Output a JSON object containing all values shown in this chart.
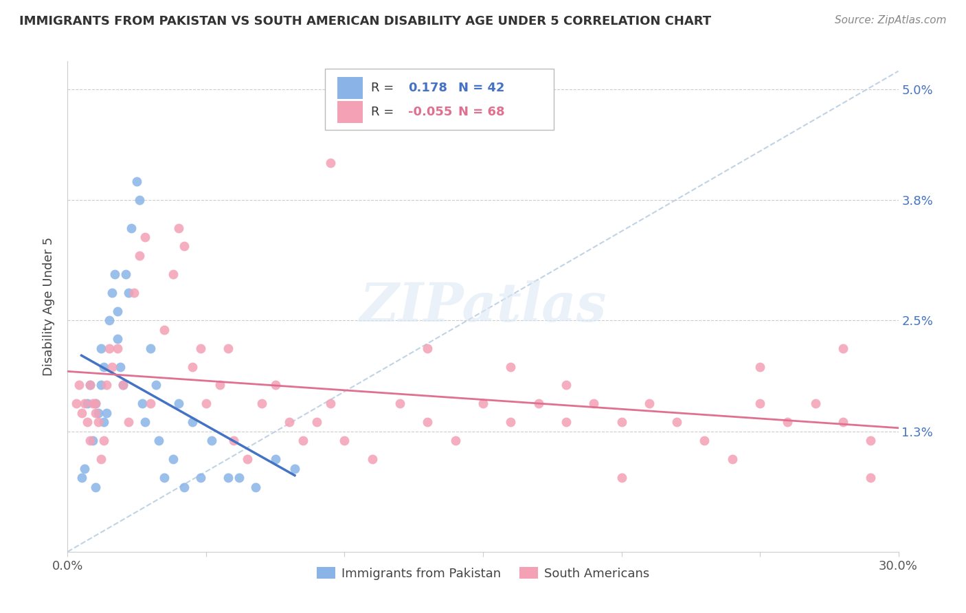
{
  "title": "IMMIGRANTS FROM PAKISTAN VS SOUTH AMERICAN DISABILITY AGE UNDER 5 CORRELATION CHART",
  "source": "Source: ZipAtlas.com",
  "ylabel": "Disability Age Under 5",
  "xlim": [
    0.0,
    0.3
  ],
  "ylim": [
    0.0,
    0.053
  ],
  "yticks": [
    0.013,
    0.025,
    0.038,
    0.05
  ],
  "ytick_labels": [
    "1.3%",
    "2.5%",
    "3.8%",
    "5.0%"
  ],
  "xticks": [
    0.0,
    0.05,
    0.1,
    0.15,
    0.2,
    0.25,
    0.3
  ],
  "pakistan_color": "#8ab4e8",
  "southam_color": "#f4a0b5",
  "pakistan_trend_color": "#4472c4",
  "southam_trend_color": "#e07090",
  "diag_line_color": "#b0c8e0",
  "watermark_text": "ZIPatlas",
  "legend_pakistan": "Immigrants from Pakistan",
  "legend_southam": "South Americans",
  "pakistan_r": "0.178",
  "pakistan_n": "42",
  "southam_r": "-0.055",
  "southam_n": "68",
  "pakistan_x": [
    0.005,
    0.006,
    0.007,
    0.008,
    0.009,
    0.01,
    0.01,
    0.011,
    0.012,
    0.012,
    0.013,
    0.013,
    0.014,
    0.015,
    0.016,
    0.017,
    0.018,
    0.018,
    0.019,
    0.02,
    0.021,
    0.022,
    0.023,
    0.025,
    0.026,
    0.027,
    0.028,
    0.03,
    0.032,
    0.033,
    0.035,
    0.038,
    0.04,
    0.042,
    0.045,
    0.048,
    0.052,
    0.058,
    0.062,
    0.068,
    0.075,
    0.082
  ],
  "pakistan_y": [
    0.008,
    0.009,
    0.016,
    0.018,
    0.012,
    0.007,
    0.016,
    0.015,
    0.018,
    0.022,
    0.02,
    0.014,
    0.015,
    0.025,
    0.028,
    0.03,
    0.026,
    0.023,
    0.02,
    0.018,
    0.03,
    0.028,
    0.035,
    0.04,
    0.038,
    0.016,
    0.014,
    0.022,
    0.018,
    0.012,
    0.008,
    0.01,
    0.016,
    0.007,
    0.014,
    0.008,
    0.012,
    0.008,
    0.008,
    0.007,
    0.01,
    0.009
  ],
  "southam_x": [
    0.003,
    0.004,
    0.005,
    0.006,
    0.007,
    0.008,
    0.008,
    0.009,
    0.01,
    0.01,
    0.011,
    0.012,
    0.013,
    0.014,
    0.015,
    0.016,
    0.018,
    0.02,
    0.022,
    0.024,
    0.026,
    0.028,
    0.03,
    0.035,
    0.038,
    0.04,
    0.042,
    0.045,
    0.048,
    0.05,
    0.055,
    0.058,
    0.06,
    0.065,
    0.07,
    0.075,
    0.08,
    0.085,
    0.09,
    0.095,
    0.1,
    0.11,
    0.12,
    0.13,
    0.14,
    0.15,
    0.16,
    0.17,
    0.18,
    0.19,
    0.2,
    0.21,
    0.22,
    0.23,
    0.24,
    0.25,
    0.26,
    0.27,
    0.28,
    0.29,
    0.095,
    0.13,
    0.18,
    0.25,
    0.28,
    0.29,
    0.16,
    0.2
  ],
  "southam_y": [
    0.016,
    0.018,
    0.015,
    0.016,
    0.014,
    0.012,
    0.018,
    0.016,
    0.016,
    0.015,
    0.014,
    0.01,
    0.012,
    0.018,
    0.022,
    0.02,
    0.022,
    0.018,
    0.014,
    0.028,
    0.032,
    0.034,
    0.016,
    0.024,
    0.03,
    0.035,
    0.033,
    0.02,
    0.022,
    0.016,
    0.018,
    0.022,
    0.012,
    0.01,
    0.016,
    0.018,
    0.014,
    0.012,
    0.014,
    0.016,
    0.012,
    0.01,
    0.016,
    0.014,
    0.012,
    0.016,
    0.014,
    0.016,
    0.014,
    0.016,
    0.014,
    0.016,
    0.014,
    0.012,
    0.01,
    0.016,
    0.014,
    0.016,
    0.014,
    0.008,
    0.042,
    0.022,
    0.018,
    0.02,
    0.022,
    0.012,
    0.02,
    0.008
  ]
}
